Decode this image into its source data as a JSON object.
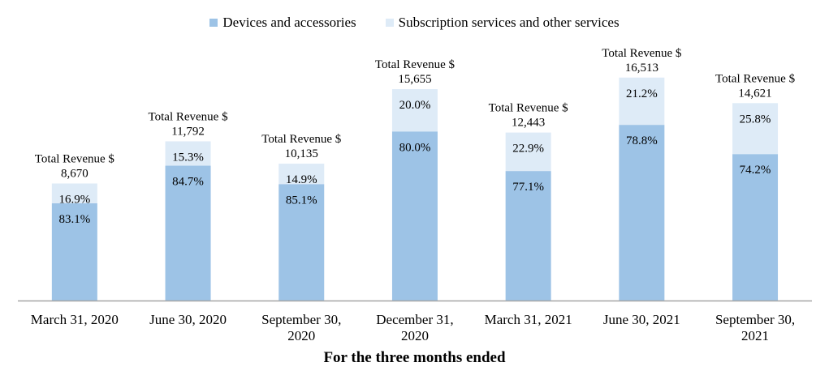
{
  "chart_data": {
    "type": "bar",
    "stacked": true,
    "xlabel": "For the three months ended",
    "categories": [
      [
        "March 31, 2020"
      ],
      [
        "June 30, 2020"
      ],
      [
        "September 30,",
        "2020"
      ],
      [
        "December 31,",
        "2020"
      ],
      [
        "March 31, 2021"
      ],
      [
        "June 30, 2021"
      ],
      [
        "September 30,",
        "2021"
      ]
    ],
    "totals": [
      8670,
      11792,
      10135,
      15655,
      12443,
      16513,
      14621
    ],
    "total_prefix": "Total Revenue $",
    "total_labels": [
      "8,670",
      "11,792",
      "10,135",
      "15,655",
      "12,443",
      "16,513",
      "14,621"
    ],
    "series": [
      {
        "name": "Devices and accessories",
        "color": "#9dc3e6",
        "percent": [
          83.1,
          84.7,
          85.1,
          80.0,
          77.1,
          78.8,
          74.2
        ],
        "labels": [
          "83.1%",
          "84.7%",
          "85.1%",
          "80.0%",
          "77.1%",
          "78.8%",
          "74.2%"
        ]
      },
      {
        "name": "Subscription services and other services",
        "color": "#deebf7",
        "percent": [
          16.9,
          15.3,
          14.9,
          20.0,
          22.9,
          21.2,
          25.8
        ],
        "labels": [
          "16.9%",
          "15.3%",
          "14.9%",
          "20.0%",
          "22.9%",
          "21.2%",
          "25.8%"
        ]
      }
    ],
    "ylim": [
      0,
      18000
    ],
    "axis_color": "#a6a6a6",
    "legend": "top"
  }
}
